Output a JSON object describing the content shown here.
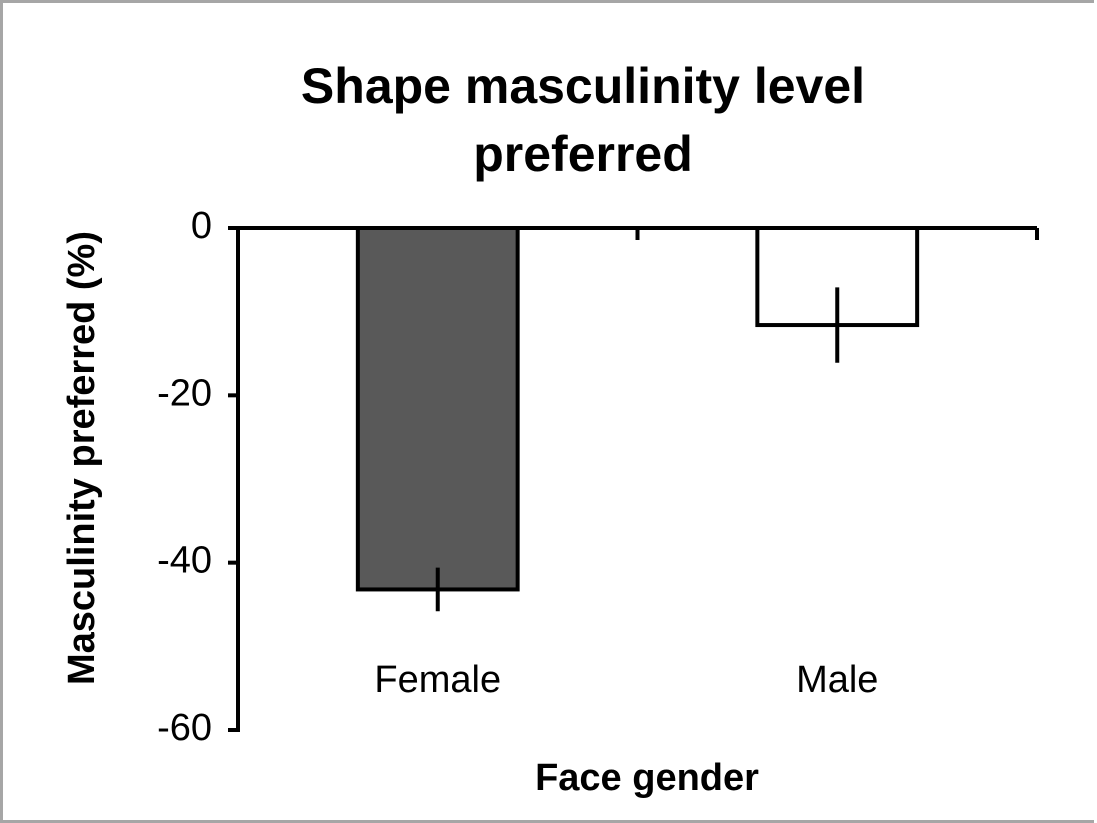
{
  "chart_data": {
    "type": "bar",
    "title": "Shape masculinity level preferred",
    "x_label": "Face gender",
    "y_label": "Masculinity preferred (%)",
    "categories": [
      "Female",
      "Male"
    ],
    "values": [
      -43.2,
      -11.6
    ],
    "errors": [
      2.6,
      4.5
    ],
    "colors": [
      "#595959",
      "#ffffff"
    ],
    "ylim": [
      -60,
      0
    ],
    "yticks": [
      0,
      -20,
      -40,
      -60
    ],
    "grid": false
  }
}
